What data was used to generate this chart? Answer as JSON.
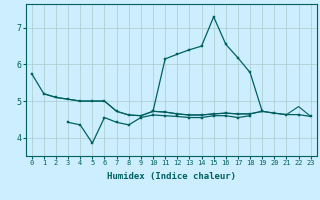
{
  "title": "",
  "xlabel": "Humidex (Indice chaleur)",
  "background_color": "#cceeff",
  "grid_color": "#aacccc",
  "line_color": "#006060",
  "x_values": [
    0,
    1,
    2,
    3,
    4,
    5,
    6,
    7,
    8,
    9,
    10,
    11,
    12,
    13,
    14,
    15,
    16,
    17,
    18,
    19,
    20,
    21,
    22,
    23
  ],
  "line_A": [
    5.75,
    5.2,
    5.1,
    5.05,
    5.0,
    5.0,
    5.0,
    4.72,
    4.62,
    4.6,
    4.72,
    4.7,
    4.65,
    4.62,
    4.62,
    4.65,
    4.67,
    4.65,
    4.65,
    4.72,
    4.67,
    4.63,
    4.63,
    4.58
  ],
  "line_B": [
    null,
    null,
    null,
    null,
    null,
    null,
    null,
    null,
    null,
    null,
    4.72,
    6.15,
    6.28,
    6.4,
    6.5,
    7.3,
    6.55,
    6.18,
    5.78,
    4.72,
    null,
    null,
    null,
    null
  ],
  "line_C": [
    null,
    null,
    null,
    4.42,
    4.35,
    3.85,
    4.55,
    4.42,
    4.35,
    4.55,
    4.62,
    4.6,
    4.58,
    4.55,
    4.55,
    4.6,
    4.6,
    4.55,
    4.6,
    null,
    null,
    null,
    null,
    null
  ],
  "line_D": [
    null,
    5.2,
    5.1,
    5.05,
    5.0,
    5.0,
    5.0,
    4.72,
    4.62,
    4.6,
    4.72,
    4.7,
    4.65,
    4.62,
    4.62,
    4.65,
    4.67,
    4.65,
    4.65,
    4.72,
    4.67,
    4.63,
    4.85,
    4.58
  ],
  "ylim": [
    3.5,
    7.65
  ],
  "yticks": [
    4,
    5,
    6,
    7
  ],
  "xlim": [
    -0.5,
    23.5
  ]
}
